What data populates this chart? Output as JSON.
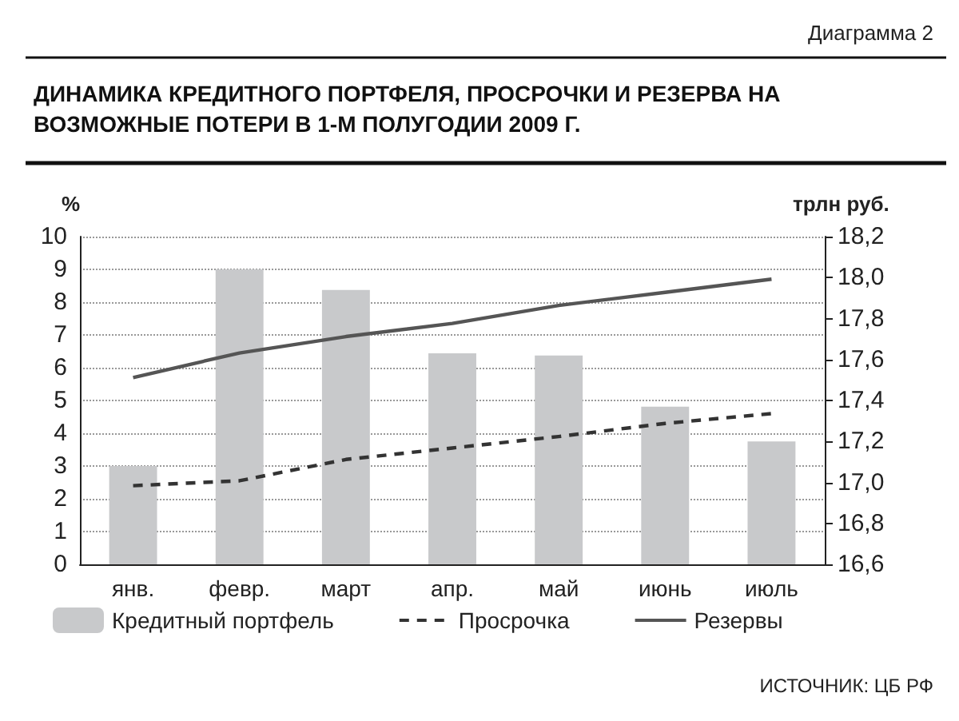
{
  "chart_data": {
    "type": "bar",
    "title": "ДИНАМИКА КРЕДИТНОГО ПОРТФЕЛЯ, ПРОСРОЧКИ И РЕЗЕРВА НА ВОЗМОЖНЫЕ ПОТЕРИ В 1-М ПОЛУГОДИИ 2009 Г.",
    "annotations": [
      "Диаграмма 2",
      "ИСТОЧНИК: ЦБ РФ"
    ],
    "ylabel": "%",
    "y2label": "трлн руб.",
    "categories": [
      "янв.",
      "февр.",
      "март",
      "апр.",
      "май",
      "июнь",
      "июль"
    ],
    "series": [
      {
        "name": "Кредитный портфель",
        "type": "bar",
        "axis": "y2",
        "color": "#c8c9cb",
        "values": [
          17.08,
          18.04,
          17.94,
          17.63,
          17.62,
          17.37,
          17.2
        ]
      },
      {
        "name": "Просрочка",
        "type": "line",
        "line_style": "dashed",
        "color": "#333333",
        "values": [
          2.4,
          2.55,
          3.2,
          3.55,
          3.9,
          4.3,
          4.6
        ]
      },
      {
        "name": "Резервы",
        "type": "line",
        "line_style": "solid",
        "color": "#555555",
        "values": [
          5.7,
          6.45,
          6.95,
          7.35,
          7.9,
          8.3,
          8.7
        ]
      }
    ],
    "ylim": [
      0,
      10
    ],
    "yticks": [
      0,
      1,
      2,
      3,
      4,
      5,
      6,
      7,
      8,
      9,
      10
    ],
    "y2lim": [
      16.6,
      18.2
    ],
    "y2ticks": [
      {
        "value": 16.6,
        "label": "16,6"
      },
      {
        "value": 16.8,
        "label": "16,8"
      },
      {
        "value": 17.0,
        "label": "17,0"
      },
      {
        "value": 17.2,
        "label": "17,2"
      },
      {
        "value": 17.4,
        "label": "17,4"
      },
      {
        "value": 17.6,
        "label": "17,6"
      },
      {
        "value": 17.8,
        "label": "17,8"
      },
      {
        "value": 18.0,
        "label": "18,0"
      },
      {
        "value": 18.2,
        "label": "18,2"
      }
    ],
    "grid": "y",
    "legend": "bottom",
    "marker": "none"
  }
}
